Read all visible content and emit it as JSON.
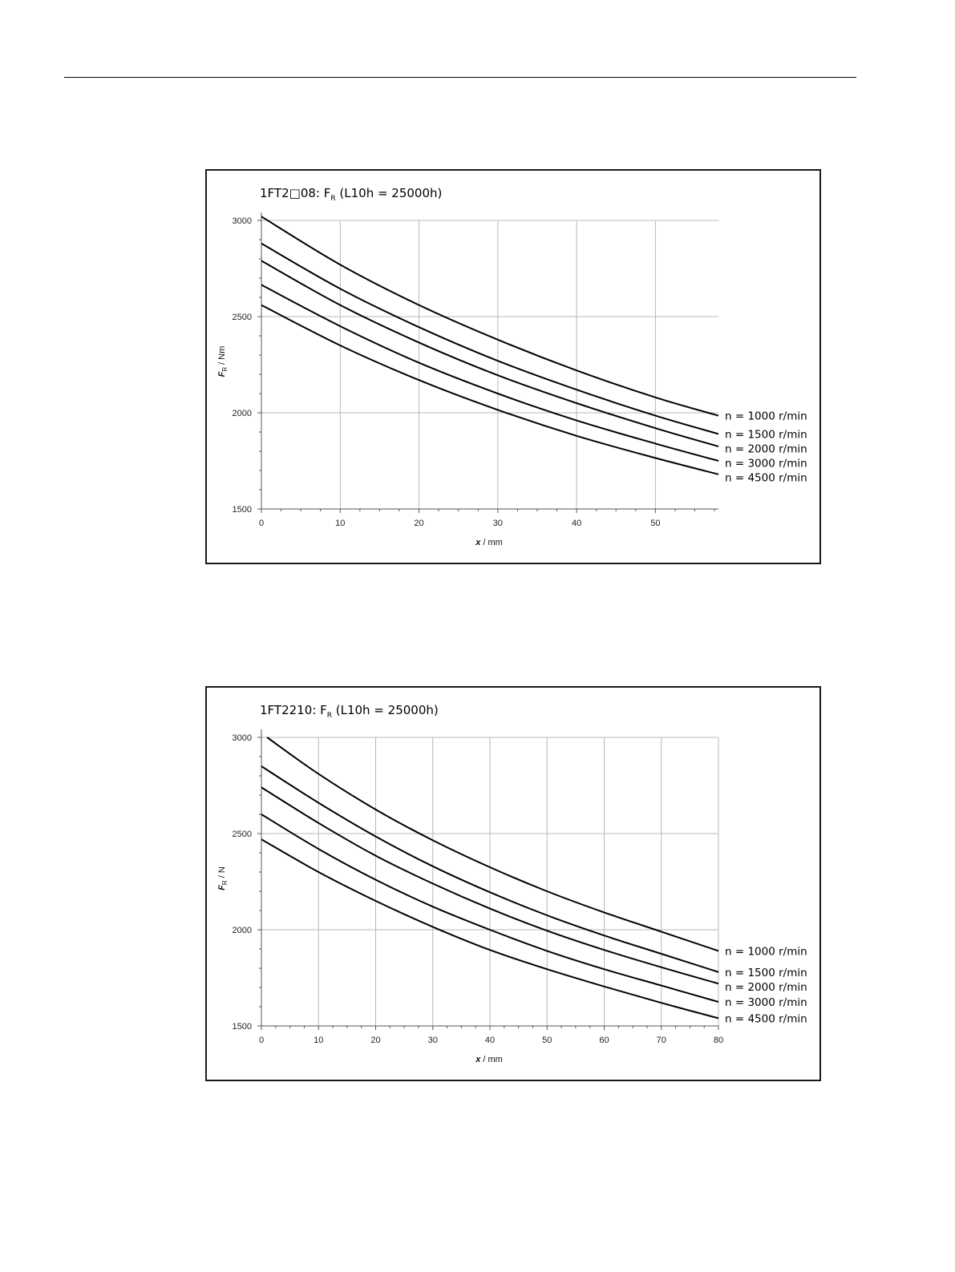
{
  "chart_data": [
    {
      "type": "line",
      "title_main": "1FT2",
      "title_suffix": "08: F",
      "title_sub": "R",
      "title_tail": " (L10h = 25000h)",
      "ylabel_main": "F",
      "ylabel_sub": "R",
      "ylabel_tail": " / Nm",
      "xlabel_main": "x",
      "xlabel_tail": " / mm",
      "xlim": [
        0,
        58
      ],
      "ylim": [
        1500,
        3000
      ],
      "x_ticks": [
        0,
        10,
        20,
        30,
        40,
        50
      ],
      "y_ticks": [
        1500,
        2000,
        2500,
        3000
      ],
      "x_minor": 2.5,
      "y_minor": 100,
      "grid": true,
      "legend_placement": "right",
      "series": [
        {
          "name": "n = 1000 r/min",
          "x": [
            0,
            10,
            20,
            30,
            40,
            50,
            58
          ],
          "y": [
            3020,
            2770,
            2560,
            2380,
            2220,
            2080,
            1985
          ]
        },
        {
          "name": "n = 1500 r/min",
          "x": [
            0,
            10,
            20,
            30,
            40,
            50,
            58
          ],
          "y": [
            2880,
            2645,
            2445,
            2270,
            2120,
            1985,
            1890
          ]
        },
        {
          "name": "n = 2000 r/min",
          "x": [
            0,
            10,
            20,
            30,
            40,
            50,
            58
          ],
          "y": [
            2790,
            2560,
            2365,
            2195,
            2050,
            1920,
            1825
          ]
        },
        {
          "name": "n = 3000 r/min",
          "x": [
            0,
            10,
            20,
            30,
            40,
            50,
            58
          ],
          "y": [
            2665,
            2450,
            2260,
            2100,
            1960,
            1840,
            1750
          ]
        },
        {
          "name": "n = 4500 r/min",
          "x": [
            0,
            10,
            20,
            30,
            40,
            50,
            58
          ],
          "y": [
            2560,
            2350,
            2170,
            2015,
            1880,
            1765,
            1680
          ]
        }
      ]
    },
    {
      "type": "line",
      "title_main": "1FT2210: F",
      "title_suffix": "",
      "title_sub": "R",
      "title_tail": " (L10h = 25000h)",
      "ylabel_main": "F",
      "ylabel_sub": "R",
      "ylabel_tail": " / N",
      "xlabel_main": "x",
      "xlabel_tail": " / mm",
      "xlim": [
        0,
        80
      ],
      "ylim": [
        1500,
        3000
      ],
      "x_ticks": [
        0,
        10,
        20,
        30,
        40,
        50,
        60,
        70,
        80
      ],
      "y_ticks": [
        1500,
        2000,
        2500,
        3000
      ],
      "x_minor": 2.5,
      "y_minor": 100,
      "grid": true,
      "legend_placement": "right",
      "series": [
        {
          "name": "n = 1000 r/min",
          "x": [
            1,
            10,
            20,
            30,
            40,
            50,
            60,
            70,
            80
          ],
          "y": [
            3000,
            2810,
            2625,
            2465,
            2325,
            2200,
            2090,
            1990,
            1890
          ]
        },
        {
          "name": "n = 1500 r/min",
          "x": [
            0,
            10,
            20,
            30,
            40,
            50,
            60,
            70,
            80
          ],
          "y": [
            2850,
            2660,
            2485,
            2330,
            2195,
            2075,
            1970,
            1875,
            1780
          ]
        },
        {
          "name": "n = 2000 r/min",
          "x": [
            0,
            10,
            20,
            30,
            40,
            50,
            60,
            70,
            80
          ],
          "y": [
            2740,
            2555,
            2385,
            2240,
            2110,
            1995,
            1895,
            1805,
            1720
          ]
        },
        {
          "name": "n = 3000 r/min",
          "x": [
            0,
            10,
            20,
            30,
            40,
            50,
            60,
            70,
            80
          ],
          "y": [
            2600,
            2420,
            2260,
            2120,
            2000,
            1890,
            1795,
            1710,
            1625
          ]
        },
        {
          "name": "n = 4500 r/min",
          "x": [
            0,
            10,
            20,
            30,
            40,
            50,
            60,
            70,
            80
          ],
          "y": [
            2470,
            2300,
            2150,
            2015,
            1895,
            1795,
            1705,
            1620,
            1540
          ]
        }
      ]
    }
  ]
}
